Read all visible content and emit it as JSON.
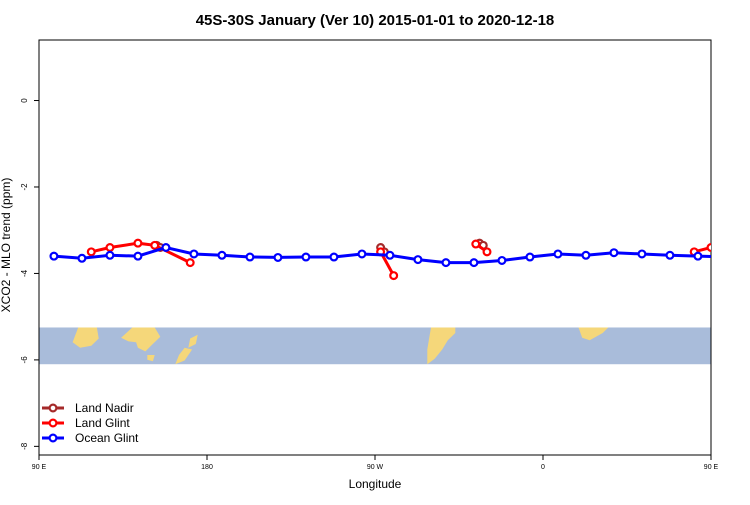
{
  "chart_data": {
    "type": "line",
    "title": "45S-30S January (Ver 10)   2015-01-01 to 2020-12-18",
    "xlabel": "Longitude",
    "ylabel": "XCO2 - MLO trend (ppm)",
    "xlim": [
      90,
      450
    ],
    "ylim": [
      -8.2,
      1.4
    ],
    "x_ticks": [
      {
        "value": 90,
        "label": "90 E"
      },
      {
        "value": 180,
        "label": "180"
      },
      {
        "value": 270,
        "label": "90 W"
      },
      {
        "value": 360,
        "label": "0"
      },
      {
        "value": 450,
        "label": "90 E"
      },
      {
        "value": 540,
        "label": "180"
      }
    ],
    "y_ticks": [
      {
        "value": 0,
        "label": "0"
      },
      {
        "value": -2,
        "label": "-2"
      },
      {
        "value": -4,
        "label": "-4"
      },
      {
        "value": -6,
        "label": "-6"
      },
      {
        "value": -8,
        "label": "-8"
      }
    ],
    "grid": false,
    "legend_position": "bottom-left",
    "map_band": {
      "y_top": -5.25,
      "y_bottom": -6.1,
      "ocean_color": "#A9BCDA",
      "land_color": "#F5D77A"
    },
    "series": [
      {
        "name": "Land Nadir",
        "color": "#A52A2A",
        "segments": [
          [
            [
              153,
              -3.35
            ],
            [
              155,
              -3.4
            ]
          ],
          [
            [
              273,
              -3.4
            ],
            [
              275,
              -3.5
            ]
          ],
          [
            [
              326,
              -3.3
            ],
            [
              328,
              -3.35
            ]
          ]
        ]
      },
      {
        "name": "Land Glint",
        "color": "#FF0000",
        "segments": [
          [
            [
              118,
              -3.5
            ],
            [
              128,
              -3.4
            ],
            [
              143,
              -3.3
            ],
            [
              152,
              -3.35
            ],
            [
              171,
              -3.75
            ]
          ],
          [
            [
              273,
              -3.5
            ],
            [
              280,
              -4.05
            ]
          ],
          [
            [
              324,
              -3.32
            ],
            [
              330,
              -3.5
            ]
          ],
          [
            [
              441,
              -3.5
            ],
            [
              450,
              -3.4
            ],
            [
              467,
              -3.3
            ],
            [
              473,
              -3.35
            ],
            [
              491,
              -3.75
            ]
          ]
        ]
      },
      {
        "name": "Ocean Glint",
        "color": "#0000FF",
        "segments": [
          [
            [
              98,
              -3.6
            ],
            [
              113,
              -3.65
            ],
            [
              128,
              -3.58
            ],
            [
              143,
              -3.6
            ],
            [
              158,
              -3.4
            ],
            [
              173,
              -3.55
            ],
            [
              188,
              -3.58
            ],
            [
              203,
              -3.62
            ],
            [
              218,
              -3.63
            ],
            [
              233,
              -3.62
            ],
            [
              248,
              -3.62
            ],
            [
              263,
              -3.55
            ],
            [
              278,
              -3.58
            ],
            [
              293,
              -3.68
            ],
            [
              308,
              -3.75
            ],
            [
              323,
              -3.75
            ],
            [
              338,
              -3.7
            ],
            [
              353,
              -3.62
            ],
            [
              368,
              -3.55
            ],
            [
              383,
              -3.58
            ],
            [
              398,
              -3.52
            ],
            [
              413,
              -3.55
            ],
            [
              428,
              -3.58
            ],
            [
              443,
              -3.6
            ],
            [
              458,
              -3.62
            ],
            [
              473,
              -3.6
            ],
            [
              488,
              -3.58
            ],
            [
              503,
              -3.62
            ]
          ]
        ]
      }
    ]
  }
}
